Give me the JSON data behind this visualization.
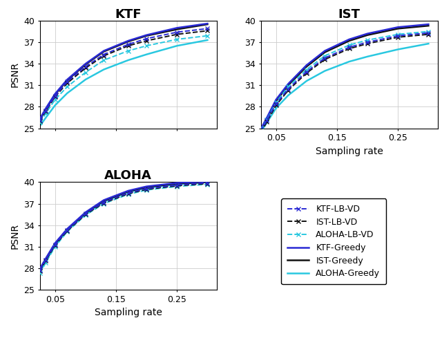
{
  "sampling_rates": [
    0.025,
    0.035,
    0.05,
    0.07,
    0.1,
    0.13,
    0.17,
    0.2,
    0.25,
    0.3
  ],
  "KTF": {
    "KTF_Greedy": [
      26.3,
      27.8,
      29.8,
      31.8,
      34.0,
      35.8,
      37.2,
      38.0,
      39.0,
      39.6
    ],
    "KTF_LB_VD": [
      26.1,
      27.5,
      29.5,
      31.5,
      33.6,
      35.3,
      36.7,
      37.5,
      38.4,
      38.9
    ],
    "IST_Greedy": [
      26.2,
      27.7,
      29.7,
      31.7,
      33.9,
      35.7,
      37.1,
      37.9,
      38.8,
      39.5
    ],
    "IST_LB_VD": [
      26.0,
      27.4,
      29.4,
      31.3,
      33.4,
      35.1,
      36.5,
      37.2,
      38.1,
      38.6
    ],
    "ALOHA_Greedy": [
      25.3,
      26.5,
      28.2,
      29.9,
      31.8,
      33.2,
      34.5,
      35.3,
      36.5,
      37.3
    ],
    "ALOHA_LB_VD": [
      25.8,
      27.1,
      29.0,
      30.8,
      32.8,
      34.5,
      35.8,
      36.5,
      37.4,
      37.9
    ]
  },
  "IST": {
    "KTF_Greedy": [
      24.9,
      26.5,
      29.0,
      31.2,
      33.8,
      35.8,
      37.4,
      38.2,
      39.1,
      39.5
    ],
    "KTF_LB_VD": [
      24.6,
      26.1,
      28.4,
      30.5,
      32.9,
      34.8,
      36.3,
      37.0,
      37.9,
      38.3
    ],
    "IST_Greedy": [
      24.8,
      26.3,
      28.8,
      31.0,
      33.6,
      35.6,
      37.2,
      38.0,
      38.9,
      39.3
    ],
    "IST_LB_VD": [
      24.4,
      25.9,
      28.2,
      30.3,
      32.7,
      34.6,
      36.1,
      36.8,
      37.7,
      38.1
    ],
    "ALOHA_Greedy": [
      24.5,
      25.8,
      27.8,
      29.6,
      31.6,
      33.0,
      34.3,
      35.0,
      36.0,
      36.8
    ],
    "ALOHA_LB_VD": [
      24.7,
      26.2,
      28.6,
      30.8,
      33.2,
      35.1,
      36.6,
      37.3,
      38.1,
      38.5
    ]
  },
  "ALOHA": {
    "KTF_Greedy": [
      27.9,
      29.4,
      31.5,
      33.5,
      35.8,
      37.5,
      38.8,
      39.4,
      39.9,
      40.1
    ],
    "KTF_LB_VD": [
      27.7,
      29.2,
      31.3,
      33.3,
      35.6,
      37.2,
      38.5,
      39.1,
      39.6,
      39.9
    ],
    "IST_Greedy": [
      27.8,
      29.3,
      31.4,
      33.4,
      35.7,
      37.4,
      38.7,
      39.3,
      39.8,
      40.0
    ],
    "IST_LB_VD": [
      27.6,
      29.1,
      31.2,
      33.2,
      35.5,
      37.1,
      38.4,
      39.0,
      39.5,
      39.8
    ],
    "ALOHA_Greedy": [
      27.5,
      29.0,
      31.2,
      33.3,
      35.6,
      37.3,
      38.6,
      39.2,
      39.7,
      40.0
    ],
    "ALOHA_LB_VD": [
      27.3,
      28.8,
      31.0,
      33.1,
      35.4,
      37.0,
      38.3,
      38.9,
      39.4,
      39.7
    ]
  },
  "colors": {
    "blue": "#2929d4",
    "black": "#111111",
    "cyan": "#29c8e0"
  },
  "ylim": [
    25,
    40
  ],
  "yticks": [
    25,
    28,
    31,
    34,
    37,
    40
  ],
  "xticks": [
    0.05,
    0.15,
    0.25
  ],
  "xlabel": "Sampling rate",
  "ylabel": "PSNR",
  "title_ktf": "KTF",
  "title_ist": "IST",
  "title_aloha": "ALOHA"
}
